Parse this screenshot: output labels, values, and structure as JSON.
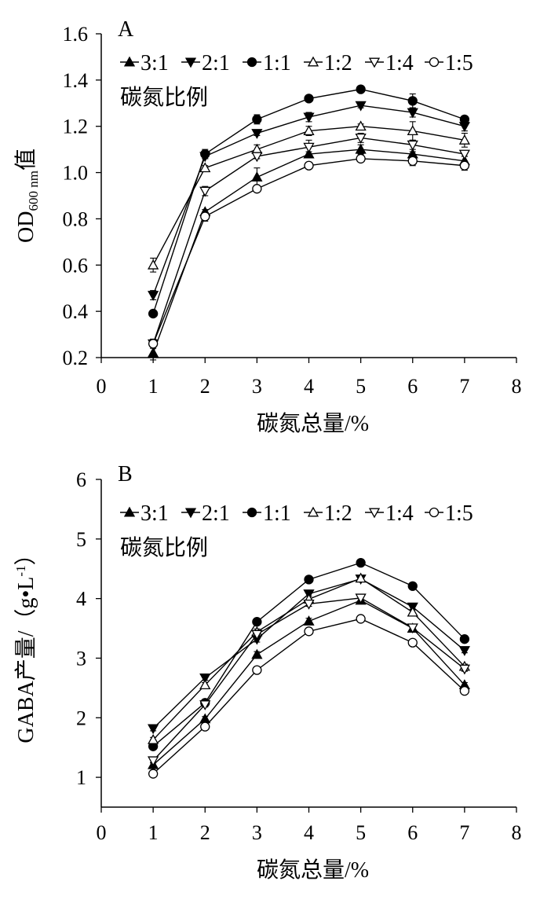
{
  "chart_data": [
    {
      "type": "line",
      "panel_label": "A",
      "xlabel": "碳氮总量/%",
      "ylabel_main": "OD",
      "ylabel_sub": "600 nm",
      "ylabel_suffix": "值",
      "legend_title": "碳氮比例",
      "xlim": [
        0,
        8
      ],
      "ylim": [
        0.2,
        1.6
      ],
      "xticks": [
        "0",
        "1",
        "2",
        "3",
        "4",
        "5",
        "6",
        "7",
        "8"
      ],
      "yticks": [
        "0.2",
        "0.4",
        "0.6",
        "0.8",
        "1.0",
        "1.2",
        "1.4",
        "1.6"
      ],
      "x": [
        1,
        2,
        3,
        4,
        5,
        6,
        7
      ],
      "series": [
        {
          "name": "3:1",
          "marker": "triangle-up-filled",
          "values": [
            0.22,
            0.83,
            0.98,
            1.08,
            1.1,
            1.08,
            1.05
          ],
          "errors": [
            0.03,
            0.01,
            0.04,
            0.01,
            0.02,
            0.01,
            0.02
          ]
        },
        {
          "name": "2:1",
          "marker": "triangle-down-filled",
          "values": [
            0.47,
            1.07,
            1.17,
            1.24,
            1.29,
            1.26,
            1.2
          ],
          "errors": [
            0.02,
            0.01,
            0.01,
            0.02,
            0.01,
            0.02,
            0.02
          ]
        },
        {
          "name": "1:1",
          "marker": "circle-filled",
          "values": [
            0.39,
            1.08,
            1.23,
            1.32,
            1.36,
            1.31,
            1.23
          ],
          "errors": [
            0.01,
            0.02,
            0.02,
            0.01,
            0.01,
            0.03,
            0.01
          ]
        },
        {
          "name": "1:2",
          "marker": "triangle-up-open",
          "values": [
            0.6,
            1.02,
            1.1,
            1.18,
            1.2,
            1.18,
            1.14
          ],
          "errors": [
            0.03,
            0.01,
            0.02,
            0.02,
            0.01,
            0.04,
            0.03
          ]
        },
        {
          "name": "1:4",
          "marker": "triangle-down-open",
          "values": [
            0.26,
            0.92,
            1.07,
            1.11,
            1.15,
            1.12,
            1.08
          ],
          "errors": [
            0.01,
            0.02,
            0.01,
            0.03,
            0.02,
            0.02,
            0.01
          ]
        },
        {
          "name": "1:5",
          "marker": "circle-open",
          "values": [
            0.26,
            0.81,
            0.93,
            1.03,
            1.06,
            1.05,
            1.03
          ],
          "errors": [
            0.02,
            0.02,
            0.01,
            0.01,
            0.01,
            0.02,
            0.02
          ]
        }
      ]
    },
    {
      "type": "line",
      "panel_label": "B",
      "xlabel": "碳氮总量/%",
      "ylabel_main": "GABA产量/（g•L",
      "ylabel_sup": "-1",
      "ylabel_suffix": "）",
      "legend_title": "碳氮比例",
      "xlim": [
        0,
        8
      ],
      "ylim": [
        0.5,
        6
      ],
      "xticks": [
        "0",
        "1",
        "2",
        "3",
        "4",
        "5",
        "6",
        "7",
        "8"
      ],
      "yticks": [
        "1",
        "2",
        "3",
        "4",
        "5",
        "6"
      ],
      "x": [
        1,
        2,
        3,
        4,
        5,
        6,
        7
      ],
      "series": [
        {
          "name": "3:1",
          "marker": "triangle-up-filled",
          "values": [
            1.21,
            1.98,
            3.06,
            3.62,
            3.97,
            3.5,
            2.55
          ],
          "errors": [
            0.04,
            0.04,
            0.05,
            0.05,
            0.04,
            0.04,
            0.04
          ]
        },
        {
          "name": "2:1",
          "marker": "triangle-down-filled",
          "values": [
            1.82,
            2.67,
            3.32,
            4.08,
            4.33,
            3.86,
            3.13
          ],
          "errors": [
            0.04,
            0.04,
            0.05,
            0.04,
            0.04,
            0.04,
            0.04
          ]
        },
        {
          "name": "1:1",
          "marker": "circle-filled",
          "values": [
            1.52,
            2.25,
            3.61,
            4.32,
            4.6,
            4.21,
            3.32
          ],
          "errors": [
            0.04,
            0.04,
            0.04,
            0.04,
            0.04,
            0.04,
            0.04
          ]
        },
        {
          "name": "1:2",
          "marker": "triangle-up-open",
          "values": [
            1.63,
            2.55,
            3.44,
            3.99,
            4.34,
            3.77,
            2.86
          ],
          "errors": [
            0.04,
            0.04,
            0.05,
            0.05,
            0.04,
            0.04,
            0.04
          ]
        },
        {
          "name": "1:4",
          "marker": "triangle-down-open",
          "values": [
            1.28,
            2.22,
            3.4,
            3.91,
            4.01,
            3.51,
            2.82
          ],
          "errors": [
            0.04,
            0.04,
            0.05,
            0.04,
            0.04,
            0.04,
            0.04
          ]
        },
        {
          "name": "1:5",
          "marker": "circle-open",
          "values": [
            1.06,
            1.85,
            2.8,
            3.45,
            3.66,
            3.26,
            2.45
          ],
          "errors": [
            0.04,
            0.04,
            0.04,
            0.04,
            0.04,
            0.04,
            0.04
          ]
        }
      ]
    }
  ]
}
